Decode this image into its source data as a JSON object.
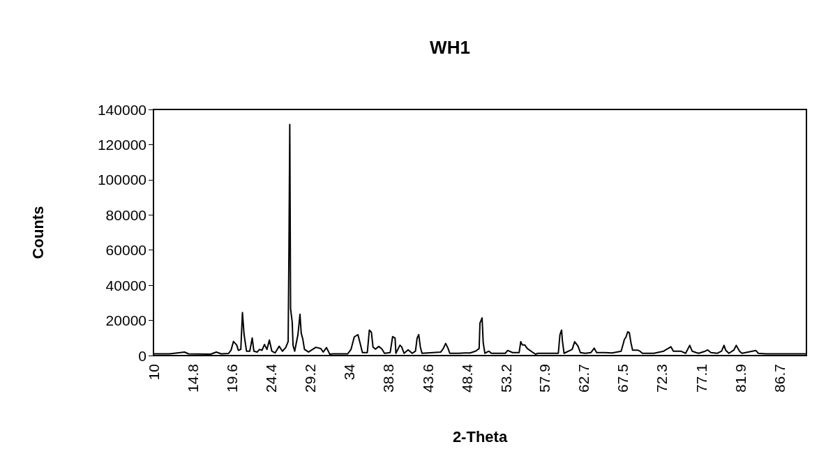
{
  "chart_data": {
    "type": "line",
    "title": "WH1",
    "xlabel": "2-Theta",
    "ylabel": "Counts",
    "color": "#000000",
    "x": [
      10,
      12,
      13.8,
      14.3,
      17,
      17.7,
      18.3,
      19.2,
      19.5,
      19.8,
      20.2,
      20.4,
      20.7,
      20.9,
      21.1,
      21.4,
      21.8,
      22.1,
      22.3,
      22.7,
      23.0,
      23.3,
      23.6,
      23.9,
      24.2,
      24.5,
      24.9,
      25.4,
      25.8,
      26.2,
      26.5,
      26.6,
      26.7,
      26.8,
      27.0,
      27.1,
      27.3,
      27.7,
      27.95,
      28.1,
      28.3,
      28.5,
      29.0,
      29.9,
      30.5,
      30.8,
      31.2,
      31.6,
      32.0,
      33.8,
      34.2,
      34.6,
      35.05,
      35.3,
      35.6,
      36.2,
      36.45,
      36.7,
      36.9,
      37.2,
      37.6,
      38.0,
      38.3,
      39.0,
      39.3,
      39.6,
      39.7,
      40.2,
      40.4,
      40.7,
      41.2,
      41.7,
      42.1,
      42.3,
      42.5,
      42.7,
      42.9,
      45.2,
      45.5,
      45.8,
      46.1,
      46.3,
      47.4,
      48.1,
      48.8,
      49.5,
      49.9,
      50.0,
      50.26,
      50.4,
      50.6,
      51.1,
      51.4,
      53.1,
      53.4,
      54.0,
      54.8,
      55.0,
      55.2,
      55.5,
      55.8,
      56.5,
      56.8,
      57.1,
      59.6,
      59.8,
      60.0,
      60.1,
      60.3,
      61.3,
      61.6,
      62.0,
      62.3,
      62.9,
      63.6,
      64.0,
      64.3,
      65.3,
      66.2,
      67.3,
      67.7,
      67.9,
      68.1,
      68.3,
      68.5,
      68.7,
      69.3,
      69.6,
      69.9,
      71.3,
      72.5,
      73.4,
      73.7,
      74.6,
      75.2,
      75.7,
      76.0,
      76.5,
      76.8,
      77.6,
      77.9,
      78.3,
      79.1,
      79.6,
      79.9,
      80.1,
      80.5,
      81.1,
      81.4,
      81.8,
      82.1,
      83.8,
      84.1,
      85,
      90
    ],
    "values": [
      1000,
      1000,
      2000,
      1000,
      800,
      2000,
      1000,
      1200,
      3000,
      8000,
      6000,
      3000,
      3500,
      24500,
      12000,
      2500,
      2500,
      10000,
      2500,
      2000,
      3500,
      3000,
      6300,
      3500,
      8800,
      2500,
      1500,
      5300,
      2500,
      4500,
      8000,
      62000,
      131500,
      26500,
      19000,
      5800,
      2500,
      11900,
      23500,
      12800,
      9300,
      3500,
      2000,
      4700,
      4000,
      2000,
      4500,
      800,
      1000,
      1000,
      3500,
      10600,
      11900,
      7300,
      1700,
      1700,
      14500,
      13200,
      4800,
      3700,
      5200,
      3700,
      1300,
      1700,
      10800,
      10000,
      1300,
      5900,
      5000,
      1300,
      3300,
      1300,
      2500,
      9900,
      11900,
      4800,
      1300,
      2000,
      3900,
      6900,
      4000,
      1300,
      1300,
      1500,
      1500,
      2600,
      4000,
      18500,
      21400,
      7300,
      1300,
      2500,
      1300,
      1300,
      2900,
      1700,
      1700,
      7900,
      6000,
      6000,
      4000,
      1700,
      800,
      1300,
      1300,
      11900,
      14500,
      8600,
      1300,
      3500,
      7900,
      5500,
      1700,
      1300,
      1700,
      4200,
      1700,
      1700,
      1500,
      2500,
      9200,
      10600,
      13500,
      13000,
      7300,
      3100,
      3100,
      2500,
      1300,
      1300,
      2500,
      5000,
      2500,
      2500,
      1300,
      5800,
      2500,
      1700,
      1300,
      2500,
      3200,
      1700,
      1300,
      2500,
      5800,
      3100,
      1300,
      3100,
      5800,
      2500,
      1300,
      2900,
      1300,
      1000,
      1000
    ],
    "xlim": [
      10,
      90
    ],
    "xticks": [
      10,
      14.8,
      19.6,
      24.4,
      29.2,
      34,
      38.8,
      43.6,
      48.4,
      53.2,
      57.9,
      62.7,
      67.5,
      72.3,
      77.1,
      81.9,
      86.7
    ],
    "ylim": [
      0,
      140000
    ],
    "yticks": [
      0,
      20000,
      40000,
      60000,
      80000,
      100000,
      120000,
      140000
    ]
  }
}
